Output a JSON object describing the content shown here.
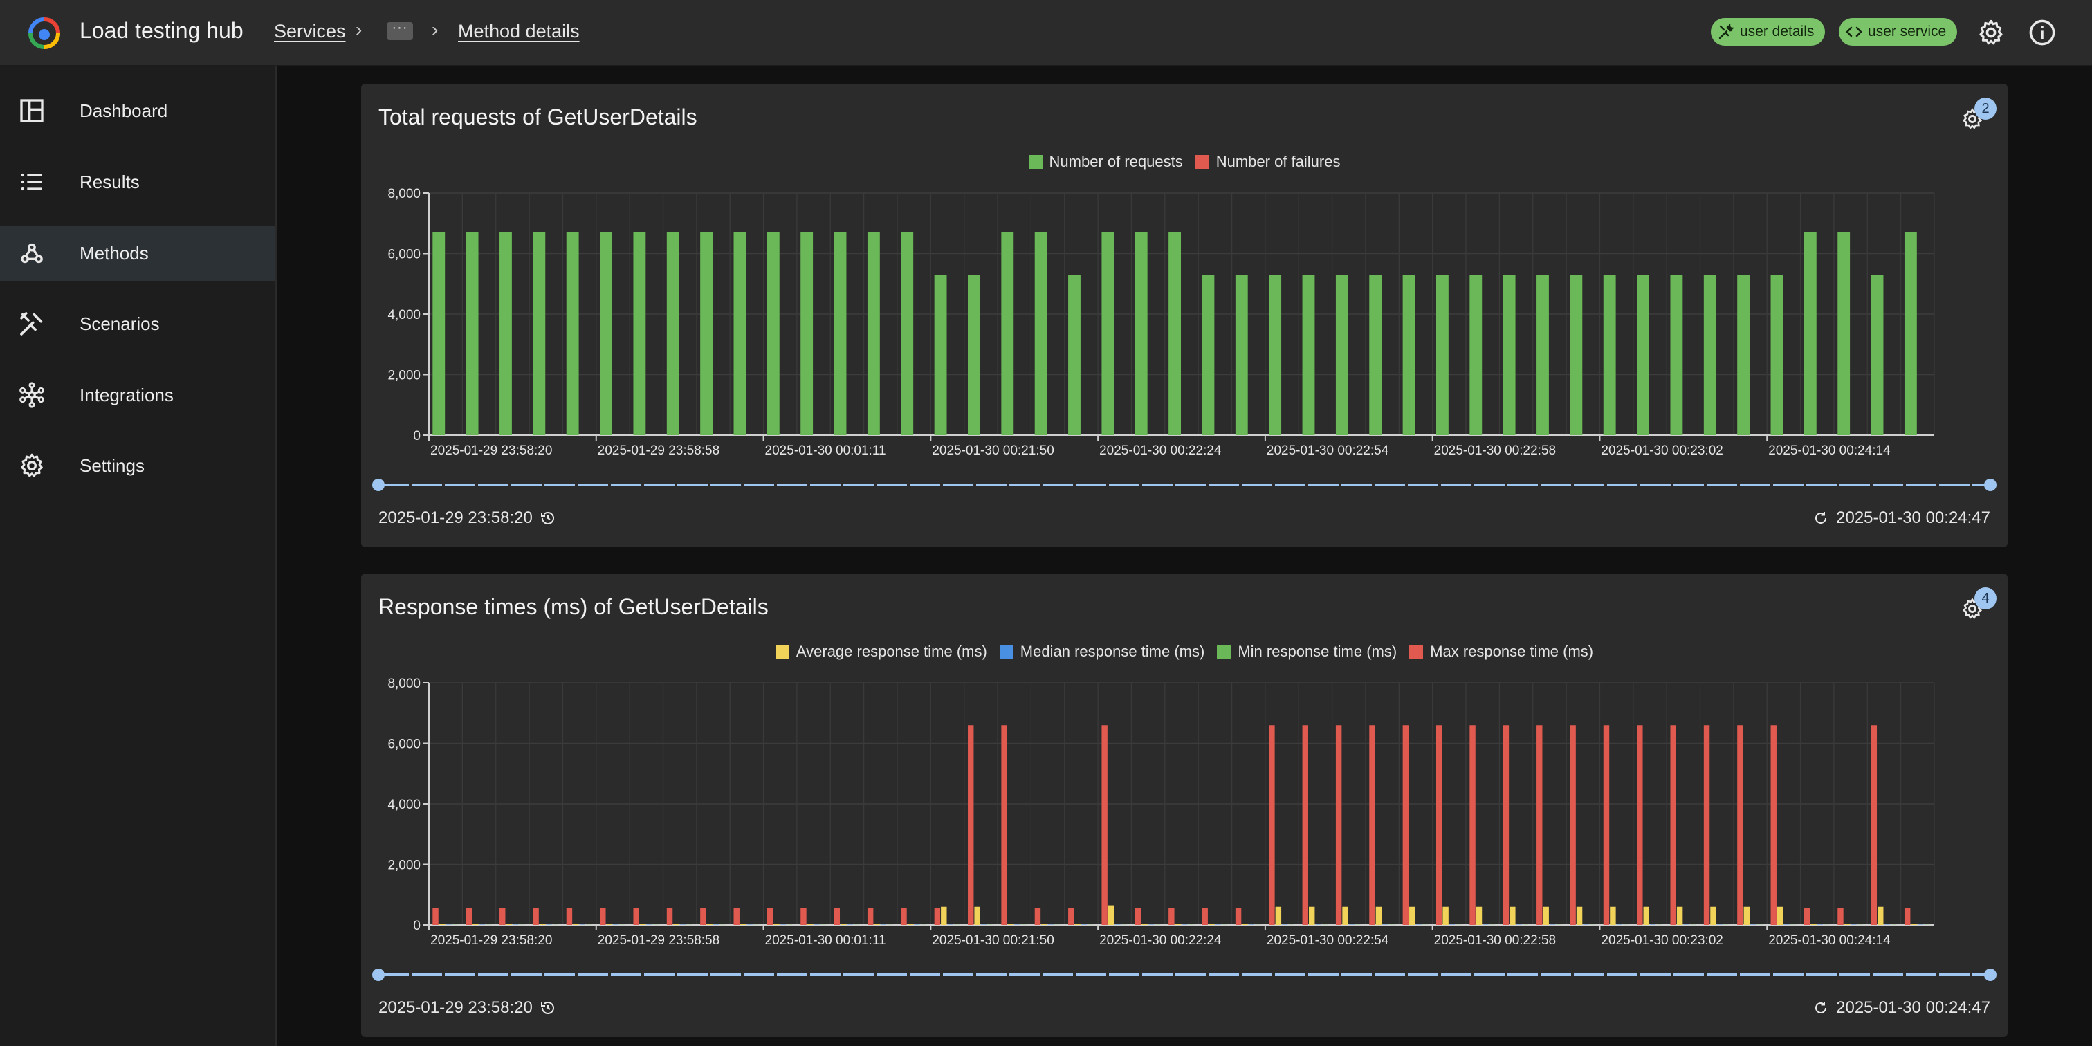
{
  "app": {
    "title": "Load testing hub"
  },
  "breadcrumb": {
    "services": "Services",
    "more": "···",
    "current": "Method details"
  },
  "chips": [
    {
      "label": "user details",
      "icon": "tools-icon"
    },
    {
      "label": "user service",
      "icon": "code-icon"
    }
  ],
  "sidebar": {
    "items": [
      {
        "label": "Dashboard",
        "icon": "dashboard-icon"
      },
      {
        "label": "Results",
        "icon": "list-icon"
      },
      {
        "label": "Methods",
        "icon": "webhook-icon",
        "active": true
      },
      {
        "label": "Scenarios",
        "icon": "tools-icon"
      },
      {
        "label": "Integrations",
        "icon": "hub-icon"
      },
      {
        "label": "Settings",
        "icon": "gear-icon"
      }
    ]
  },
  "colors": {
    "green": "#6ab857",
    "red": "#e05a50",
    "yellow": "#f2d35a",
    "blue": "#4a90e2",
    "slider": "#9ec6f0",
    "chip": "#7cc46a"
  },
  "x_tick_labels": [
    "2025-01-29 23:58:20",
    "2025-01-29 23:58:58",
    "2025-01-30 00:01:11",
    "2025-01-30 00:21:50",
    "2025-01-30 00:22:24",
    "2025-01-30 00:22:54",
    "2025-01-30 00:22:58",
    "2025-01-30 00:23:02",
    "2025-01-30 00:24:14"
  ],
  "requests_card": {
    "title": "Total requests of GetUserDetails",
    "badge": "2",
    "legend": [
      "Number of requests",
      "Number of failures"
    ],
    "range_start": "2025-01-29 23:58:20",
    "range_end": "2025-01-30 00:24:47"
  },
  "response_card": {
    "title": "Response times (ms) of GetUserDetails",
    "badge": "4",
    "legend": [
      "Average response time (ms)",
      "Median response time (ms)",
      "Min response time (ms)",
      "Max response time (ms)"
    ],
    "range_start": "2025-01-29 23:58:20",
    "range_end": "2025-01-30 00:24:47"
  },
  "chart_data": [
    {
      "type": "bar",
      "title": "Total requests of GetUserDetails",
      "ylim": [
        0,
        8000
      ],
      "yticks": [
        "0",
        "2,000",
        "4,000",
        "6,000",
        "8,000"
      ],
      "legend_position": "top-center",
      "grid": true,
      "series": [
        {
          "name": "Number of requests",
          "values": [
            6700,
            6700,
            6700,
            6700,
            6700,
            6700,
            6700,
            6700,
            6700,
            6700,
            6700,
            6700,
            6700,
            6700,
            6700,
            5300,
            5300,
            6700,
            6700,
            5300,
            6700,
            6700,
            6700,
            5300,
            5300,
            5300,
            5300,
            5300,
            5300,
            5300,
            5300,
            5300,
            5300,
            5300,
            5300,
            5300,
            5300,
            5300,
            5300,
            5300,
            5300,
            6700,
            6700,
            5300,
            6700
          ]
        },
        {
          "name": "Number of failures",
          "values": [
            0,
            0,
            0,
            0,
            0,
            0,
            0,
            0,
            0,
            0,
            0,
            0,
            0,
            0,
            0,
            0,
            0,
            0,
            0,
            0,
            0,
            0,
            0,
            0,
            0,
            0,
            0,
            0,
            0,
            0,
            0,
            0,
            0,
            0,
            0,
            0,
            0,
            0,
            0,
            0,
            0,
            0,
            0,
            0,
            0
          ]
        }
      ]
    },
    {
      "type": "bar",
      "title": "Response times (ms) of GetUserDetails",
      "ylim": [
        0,
        8000
      ],
      "yticks": [
        "0",
        "2,000",
        "4,000",
        "6,000",
        "8,000"
      ],
      "legend_position": "top-center",
      "grid": true,
      "series": [
        {
          "name": "Average response time (ms)",
          "values": [
            30,
            30,
            30,
            30,
            30,
            30,
            30,
            30,
            30,
            30,
            30,
            30,
            30,
            30,
            30,
            600,
            600,
            30,
            30,
            30,
            650,
            30,
            30,
            30,
            30,
            600,
            600,
            600,
            600,
            600,
            600,
            600,
            600,
            600,
            600,
            600,
            600,
            600,
            600,
            600,
            600,
            30,
            30,
            600,
            30
          ]
        },
        {
          "name": "Median response time (ms)",
          "values": [
            10,
            10,
            10,
            10,
            10,
            10,
            10,
            10,
            10,
            10,
            10,
            10,
            10,
            10,
            10,
            10,
            10,
            10,
            10,
            10,
            10,
            10,
            10,
            10,
            10,
            10,
            10,
            10,
            10,
            10,
            10,
            10,
            10,
            10,
            10,
            10,
            10,
            10,
            10,
            10,
            10,
            10,
            10,
            10,
            10
          ]
        },
        {
          "name": "Min response time (ms)",
          "values": [
            5,
            5,
            5,
            5,
            5,
            5,
            5,
            5,
            5,
            5,
            5,
            5,
            5,
            5,
            5,
            5,
            5,
            5,
            5,
            5,
            5,
            5,
            5,
            5,
            5,
            5,
            5,
            5,
            5,
            5,
            5,
            5,
            5,
            5,
            5,
            5,
            5,
            5,
            5,
            5,
            5,
            5,
            5,
            5,
            5
          ]
        },
        {
          "name": "Max response time (ms)",
          "values": [
            550,
            550,
            550,
            550,
            550,
            550,
            550,
            550,
            550,
            550,
            550,
            550,
            550,
            550,
            550,
            550,
            6600,
            6600,
            550,
            550,
            6600,
            550,
            550,
            550,
            550,
            6600,
            6600,
            6600,
            6600,
            6600,
            6600,
            6600,
            6600,
            6600,
            6600,
            6600,
            6600,
            6600,
            6600,
            6600,
            6600,
            550,
            550,
            6600,
            550
          ]
        }
      ]
    }
  ]
}
